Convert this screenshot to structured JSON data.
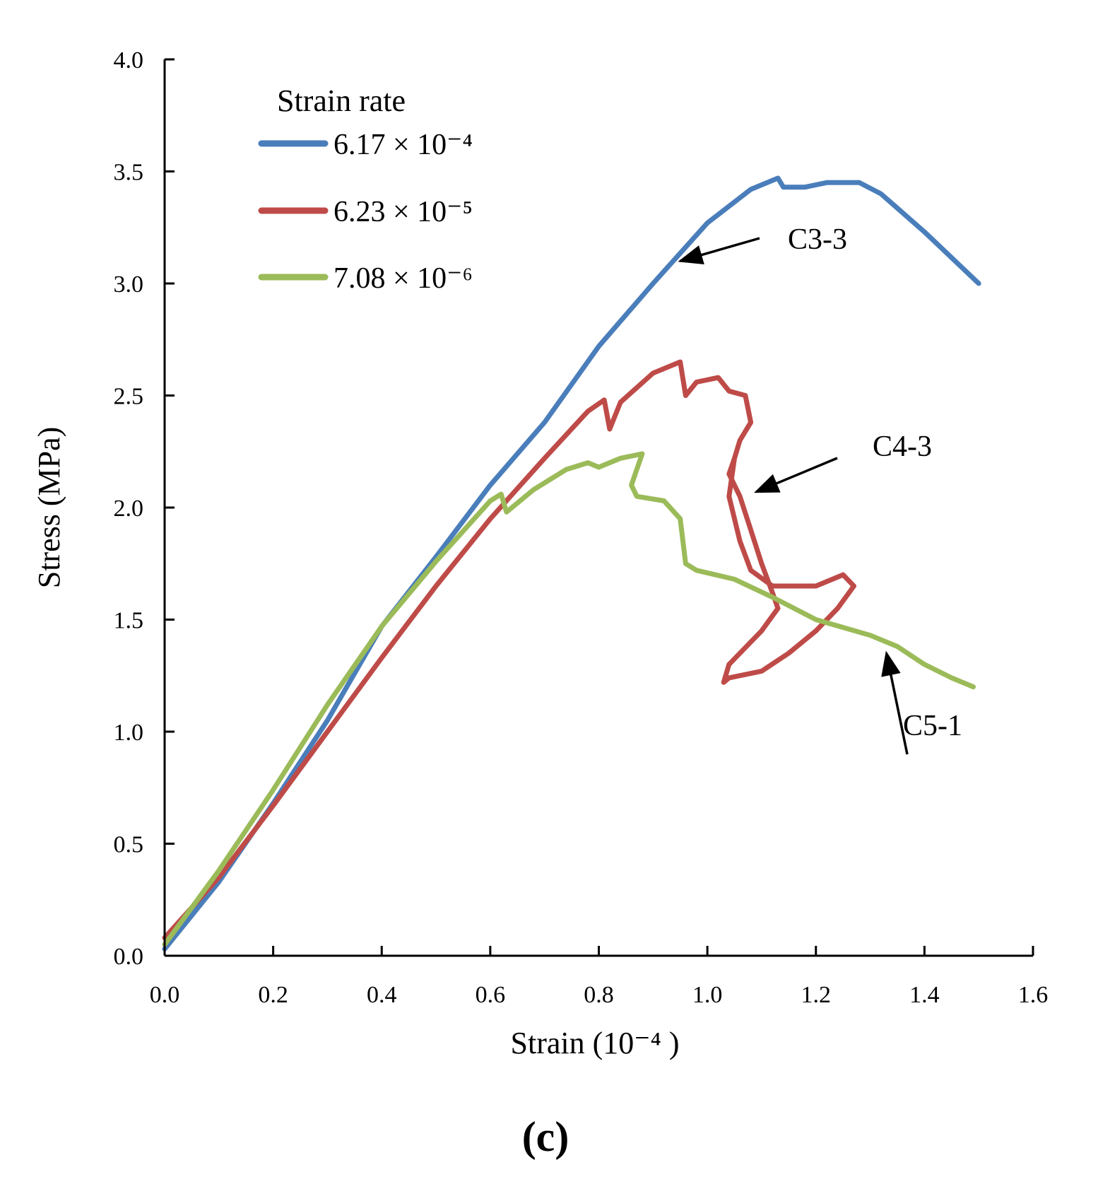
{
  "chart_data": {
    "type": "line",
    "title": "",
    "panel_label": "(c)",
    "xlabel": "Strain (10⁻⁴ )",
    "ylabel": "Stress (MPa)",
    "xlim": [
      0.0,
      1.6
    ],
    "ylim": [
      0.0,
      4.0
    ],
    "xticks": [
      "0.0",
      "0.2",
      "0.4",
      "0.6",
      "0.8",
      "1.0",
      "1.2",
      "1.4",
      "1.6"
    ],
    "yticks": [
      "0.0",
      "0.5",
      "1.0",
      "1.5",
      "2.0",
      "2.5",
      "3.0",
      "3.5",
      "4.0"
    ],
    "grid": false,
    "legend": {
      "title": "Strain rate",
      "position": "top-left"
    },
    "series": [
      {
        "name": "6.17 × 10⁻⁴",
        "color": "#4a7ebb",
        "width": 7,
        "points": [
          [
            0.0,
            0.03
          ],
          [
            0.1,
            0.33
          ],
          [
            0.2,
            0.68
          ],
          [
            0.3,
            1.05
          ],
          [
            0.4,
            1.47
          ],
          [
            0.5,
            1.78
          ],
          [
            0.6,
            2.1
          ],
          [
            0.7,
            2.38
          ],
          [
            0.8,
            2.72
          ],
          [
            0.9,
            3.0
          ],
          [
            1.0,
            3.27
          ],
          [
            1.08,
            3.42
          ],
          [
            1.13,
            3.47
          ],
          [
            1.14,
            3.43
          ],
          [
            1.18,
            3.43
          ],
          [
            1.22,
            3.45
          ],
          [
            1.28,
            3.45
          ],
          [
            1.32,
            3.4
          ],
          [
            1.4,
            3.23
          ],
          [
            1.5,
            3.0
          ]
        ]
      },
      {
        "name": "6.23 × 10⁻⁵",
        "color": "#be4b48",
        "width": 7,
        "points": [
          [
            0.0,
            0.08
          ],
          [
            0.1,
            0.35
          ],
          [
            0.2,
            0.67
          ],
          [
            0.3,
            1.0
          ],
          [
            0.4,
            1.33
          ],
          [
            0.5,
            1.65
          ],
          [
            0.6,
            1.95
          ],
          [
            0.7,
            2.22
          ],
          [
            0.78,
            2.43
          ],
          [
            0.81,
            2.48
          ],
          [
            0.82,
            2.35
          ],
          [
            0.84,
            2.47
          ],
          [
            0.9,
            2.6
          ],
          [
            0.95,
            2.65
          ],
          [
            0.96,
            2.5
          ],
          [
            0.98,
            2.56
          ],
          [
            1.02,
            2.58
          ],
          [
            1.04,
            2.52
          ],
          [
            1.07,
            2.5
          ],
          [
            1.08,
            2.38
          ],
          [
            1.06,
            2.3
          ],
          [
            1.05,
            2.22
          ],
          [
            1.04,
            2.05
          ],
          [
            1.06,
            1.85
          ],
          [
            1.08,
            1.72
          ],
          [
            1.12,
            1.65
          ],
          [
            1.2,
            1.65
          ],
          [
            1.25,
            1.7
          ],
          [
            1.27,
            1.65
          ],
          [
            1.24,
            1.55
          ],
          [
            1.2,
            1.45
          ],
          [
            1.15,
            1.35
          ],
          [
            1.1,
            1.27
          ],
          [
            1.04,
            1.24
          ],
          [
            1.03,
            1.22
          ],
          [
            1.04,
            1.3
          ],
          [
            1.06,
            1.35
          ],
          [
            1.1,
            1.45
          ],
          [
            1.13,
            1.55
          ],
          [
            1.12,
            1.62
          ],
          [
            1.1,
            1.75
          ],
          [
            1.08,
            1.9
          ],
          [
            1.06,
            2.05
          ],
          [
            1.04,
            2.15
          ],
          [
            1.05,
            2.22
          ]
        ]
      },
      {
        "name": "7.08 × 10⁻⁶",
        "color": "#9bbb59",
        "width": 7,
        "points": [
          [
            0.0,
            0.05
          ],
          [
            0.1,
            0.38
          ],
          [
            0.2,
            0.74
          ],
          [
            0.3,
            1.12
          ],
          [
            0.4,
            1.47
          ],
          [
            0.5,
            1.76
          ],
          [
            0.6,
            2.03
          ],
          [
            0.62,
            2.06
          ],
          [
            0.63,
            1.98
          ],
          [
            0.68,
            2.08
          ],
          [
            0.74,
            2.17
          ],
          [
            0.78,
            2.2
          ],
          [
            0.8,
            2.18
          ],
          [
            0.84,
            2.22
          ],
          [
            0.88,
            2.24
          ],
          [
            0.86,
            2.1
          ],
          [
            0.87,
            2.05
          ],
          [
            0.92,
            2.03
          ],
          [
            0.95,
            1.95
          ],
          [
            0.96,
            1.75
          ],
          [
            0.98,
            1.72
          ],
          [
            1.05,
            1.68
          ],
          [
            1.12,
            1.6
          ],
          [
            1.2,
            1.5
          ],
          [
            1.3,
            1.43
          ],
          [
            1.35,
            1.38
          ],
          [
            1.4,
            1.3
          ],
          [
            1.45,
            1.24
          ],
          [
            1.49,
            1.2
          ]
        ]
      }
    ],
    "annotations": [
      {
        "text": "C3-3",
        "point": [
          0.95,
          3.1
        ]
      },
      {
        "text": "C4-3",
        "point": [
          1.09,
          2.07
        ]
      },
      {
        "text": "C5-1",
        "point": [
          1.33,
          1.35
        ]
      }
    ]
  }
}
